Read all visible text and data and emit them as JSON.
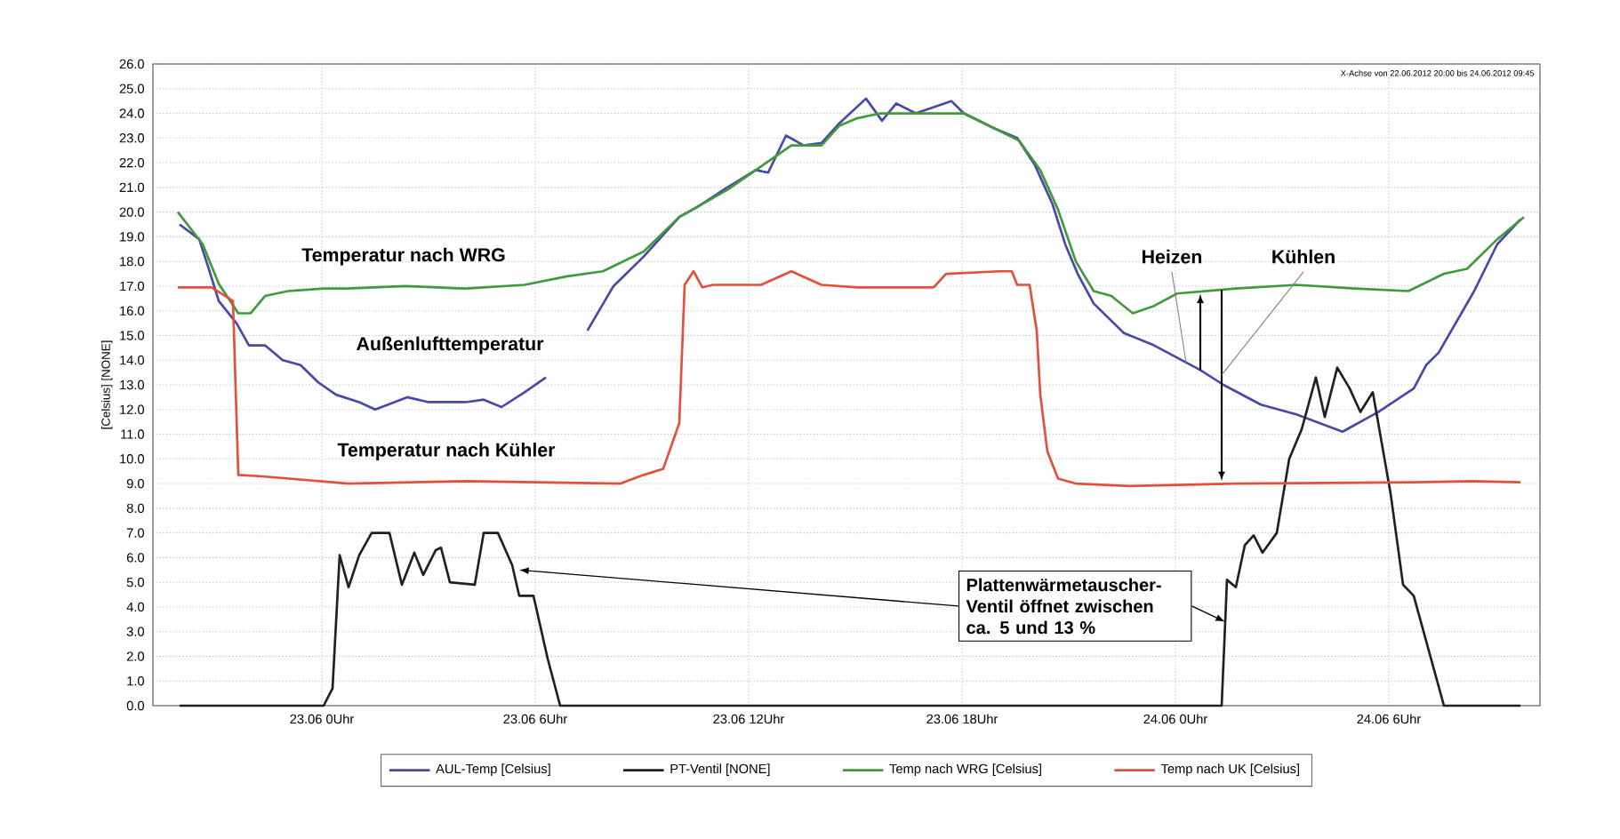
{
  "chart_data": {
    "type": "line",
    "ylabel": "[Celsius] [NONE]",
    "xlim": [
      "2012-06-22T19:15",
      "2012-06-24T10:15"
    ],
    "ylim": [
      0,
      26
    ],
    "xticks": [
      {
        "value": "2012-06-23T00:00",
        "label": "23.06 0Uhr"
      },
      {
        "value": "2012-06-23T06:00",
        "label": "23.06 6Uhr"
      },
      {
        "value": "2012-06-23T12:00",
        "label": "23.06 12Uhr"
      },
      {
        "value": "2012-06-23T18:00",
        "label": "23.06 18Uhr"
      },
      {
        "value": "2012-06-24T00:00",
        "label": "24.06 0Uhr"
      },
      {
        "value": "2012-06-24T06:00",
        "label": "24.06 6Uhr"
      }
    ],
    "yticks": [
      {
        "value": 0,
        "label": "0.0"
      },
      {
        "value": 1,
        "label": "1.0"
      },
      {
        "value": 2,
        "label": "2.0"
      },
      {
        "value": 3,
        "label": "3.0"
      },
      {
        "value": 4,
        "label": "4.0"
      },
      {
        "value": 5,
        "label": "5.0"
      },
      {
        "value": 6,
        "label": "6.0"
      },
      {
        "value": 7,
        "label": "7.0"
      },
      {
        "value": 8,
        "label": "8.0"
      },
      {
        "value": 9,
        "label": "9.0"
      },
      {
        "value": 10,
        "label": "10.0"
      },
      {
        "value": 11,
        "label": "11.0"
      },
      {
        "value": 12,
        "label": "12.0"
      },
      {
        "value": 13,
        "label": "13.0"
      },
      {
        "value": 14,
        "label": "14.0"
      },
      {
        "value": 15,
        "label": "15.0"
      },
      {
        "value": 16,
        "label": "16.0"
      },
      {
        "value": 17,
        "label": "17.0"
      },
      {
        "value": 18,
        "label": "18.0"
      },
      {
        "value": 19,
        "label": "19.0"
      },
      {
        "value": 20,
        "label": "20.0"
      },
      {
        "value": 21,
        "label": "21.0"
      },
      {
        "value": 22,
        "label": "22.0"
      },
      {
        "value": 23,
        "label": "23.0"
      },
      {
        "value": 24,
        "label": "24.0"
      },
      {
        "value": 25,
        "label": "25.0"
      },
      {
        "value": 26,
        "label": "26.0"
      }
    ],
    "grid": true,
    "legend": "bottom",
    "marker": "none",
    "line_style": "solid",
    "series": [
      {
        "name": "AUL-Temp [Celsius]",
        "color": "#4848a8",
        "x": [
          "2012-06-22T20:00",
          "2012-06-22T20:33",
          "2012-06-22T20:48",
          "2012-06-22T21:06",
          "2012-06-22T21:36",
          "2012-06-22T21:57",
          "2012-06-22T22:24",
          "2012-06-22T22:54",
          "2012-06-22T23:24",
          "2012-06-22T23:54",
          "2012-06-23T00:24",
          "2012-06-23T01:03",
          "2012-06-23T01:30",
          "2012-06-23T02:24",
          "2012-06-23T03:00",
          "2012-06-23T04:03",
          "2012-06-23T04:33",
          "2012-06-23T05:03",
          "2012-06-23T05:42",
          "2012-06-23T06:18",
          "2012-06-23T06:54",
          "2012-06-23T07:28",
          "2012-06-23T08:12",
          "2012-06-23T09:03",
          "2012-06-23T10:03",
          "2012-06-23T10:33",
          "2012-06-23T11:24",
          "2012-06-23T12:12",
          "2012-06-23T12:33",
          "2012-06-23T13:03",
          "2012-06-23T13:33",
          "2012-06-23T14:03",
          "2012-06-23T14:33",
          "2012-06-23T15:18",
          "2012-06-23T15:45",
          "2012-06-23T16:09",
          "2012-06-23T16:42",
          "2012-06-23T17:42",
          "2012-06-23T18:03",
          "2012-06-23T18:54",
          "2012-06-23T19:33",
          "2012-06-23T20:03",
          "2012-06-23T20:33",
          "2012-06-23T20:54",
          "2012-06-23T21:15",
          "2012-06-23T21:42",
          "2012-06-23T22:33",
          "2012-06-23T23:24",
          "2012-06-24T00:42",
          "2012-06-24T01:21",
          "2012-06-24T02:24",
          "2012-06-24T03:24",
          "2012-06-24T04:42",
          "2012-06-24T05:42",
          "2012-06-24T06:42",
          "2012-06-24T07:03",
          "2012-06-24T07:24",
          "2012-06-24T08:24",
          "2012-06-24T09:03",
          "2012-06-24T09:42"
        ],
        "values": [
          19.5,
          18.9,
          17.8,
          16.4,
          15.5,
          14.6,
          14.6,
          14.0,
          13.8,
          13.1,
          12.6,
          12.3,
          12.0,
          12.5,
          12.3,
          12.3,
          12.4,
          12.1,
          12.7,
          13.3,
          null,
          15.2,
          17.0,
          18.2,
          19.8,
          20.2,
          21.0,
          21.7,
          21.6,
          23.1,
          22.7,
          22.8,
          23.6,
          24.6,
          23.7,
          24.4,
          24.0,
          24.5,
          24.0,
          23.4,
          23.0,
          21.9,
          20.3,
          18.7,
          17.5,
          16.3,
          15.1,
          14.6,
          13.6,
          13.0,
          12.2,
          11.8,
          11.1,
          11.9,
          12.85,
          13.8,
          14.3,
          16.8,
          18.7,
          19.7
        ]
      },
      {
        "name": "PT-Ventil [NONE]",
        "color": "#202020",
        "x": [
          "2012-06-22T20:00",
          "2012-06-23T00:03",
          "2012-06-23T00:18",
          "2012-06-23T00:30",
          "2012-06-23T00:45",
          "2012-06-23T01:03",
          "2012-06-23T01:24",
          "2012-06-23T01:54",
          "2012-06-23T02:15",
          "2012-06-23T02:36",
          "2012-06-23T02:51",
          "2012-06-23T03:12",
          "2012-06-23T03:21",
          "2012-06-23T03:36",
          "2012-06-23T04:18",
          "2012-06-23T04:33",
          "2012-06-23T04:57",
          "2012-06-23T05:21",
          "2012-06-23T05:33",
          "2012-06-23T05:57",
          "2012-06-23T06:21",
          "2012-06-23T06:42",
          "2012-06-24T01:18",
          "2012-06-24T01:27",
          "2012-06-24T01:42",
          "2012-06-24T01:57",
          "2012-06-24T02:12",
          "2012-06-24T02:27",
          "2012-06-24T02:51",
          "2012-06-24T03:12",
          "2012-06-24T03:33",
          "2012-06-24T03:57",
          "2012-06-24T04:12",
          "2012-06-24T04:33",
          "2012-06-24T04:54",
          "2012-06-24T05:12",
          "2012-06-24T05:33",
          "2012-06-24T06:03",
          "2012-06-24T06:24",
          "2012-06-24T06:42",
          "2012-06-24T07:33",
          "2012-06-24T09:42"
        ],
        "values": [
          0,
          0,
          0.7,
          6.1,
          4.8,
          6.1,
          7.0,
          7.0,
          4.9,
          6.2,
          5.3,
          6.3,
          6.4,
          5.0,
          4.9,
          7.0,
          7.0,
          5.7,
          4.45,
          4.45,
          1.9,
          0,
          0,
          5.1,
          4.8,
          6.5,
          6.9,
          6.2,
          7.0,
          10.0,
          11.2,
          13.3,
          11.7,
          13.7,
          12.85,
          11.9,
          12.7,
          8.6,
          4.9,
          4.45,
          0,
          0
        ]
      },
      {
        "name": "Temp nach WRG [Celsius]",
        "color": "#3f9a3a",
        "x": [
          "2012-06-22T19:57",
          "2012-06-22T20:39",
          "2012-06-22T21:06",
          "2012-06-22T21:39",
          "2012-06-22T22:00",
          "2012-06-22T22:24",
          "2012-06-22T23:03",
          "2012-06-23T00:03",
          "2012-06-23T00:42",
          "2012-06-23T02:21",
          "2012-06-23T04:03",
          "2012-06-23T05:42",
          "2012-06-23T06:54",
          "2012-06-23T07:54",
          "2012-06-23T09:03",
          "2012-06-23T10:03",
          "2012-06-23T11:24",
          "2012-06-23T12:12",
          "2012-06-23T13:12",
          "2012-06-23T14:03",
          "2012-06-23T14:33",
          "2012-06-23T15:03",
          "2012-06-23T15:42",
          "2012-06-23T17:21",
          "2012-06-23T18:03",
          "2012-06-23T18:54",
          "2012-06-23T19:36",
          "2012-06-23T20:12",
          "2012-06-23T20:42",
          "2012-06-23T21:12",
          "2012-06-23T21:42",
          "2012-06-23T22:12",
          "2012-06-23T22:48",
          "2012-06-23T23:24",
          "2012-06-24T00:03",
          "2012-06-24T01:42",
          "2012-06-24T03:24",
          "2012-06-24T05:03",
          "2012-06-24T06:33",
          "2012-06-24T07:33",
          "2012-06-24T08:12",
          "2012-06-24T09:03",
          "2012-06-24T09:48"
        ],
        "values": [
          20.0,
          18.7,
          17.1,
          15.9,
          15.9,
          16.6,
          16.8,
          16.9,
          16.9,
          17.0,
          16.9,
          17.05,
          17.4,
          17.6,
          18.4,
          19.8,
          20.9,
          21.7,
          22.7,
          22.7,
          23.5,
          23.8,
          24.0,
          24.0,
          24.0,
          23.4,
          22.9,
          21.7,
          20.1,
          18.0,
          16.8,
          16.6,
          15.9,
          16.2,
          16.7,
          16.9,
          17.05,
          16.9,
          16.8,
          17.5,
          17.7,
          18.9,
          19.8
        ]
      },
      {
        "name": "Temp nach UK [Celsius]",
        "color": "#e0503c",
        "x": [
          "2012-06-22T19:57",
          "2012-06-22T20:54",
          "2012-06-22T21:30",
          "2012-06-22T21:39",
          "2012-06-22T22:15",
          "2012-06-23T00:45",
          "2012-06-23T04:06",
          "2012-06-23T08:24",
          "2012-06-23T09:03",
          "2012-06-23T09:36",
          "2012-06-23T10:03",
          "2012-06-23T10:12",
          "2012-06-23T10:27",
          "2012-06-23T10:42",
          "2012-06-23T11:00",
          "2012-06-23T12:21",
          "2012-06-23T13:12",
          "2012-06-23T14:03",
          "2012-06-23T15:03",
          "2012-06-23T17:12",
          "2012-06-23T17:33",
          "2012-06-23T19:03",
          "2012-06-23T19:24",
          "2012-06-23T19:33",
          "2012-06-23T19:54",
          "2012-06-23T20:06",
          "2012-06-23T20:12",
          "2012-06-23T20:24",
          "2012-06-23T20:42",
          "2012-06-23T21:12",
          "2012-06-23T22:42",
          "2012-06-24T01:42",
          "2012-06-24T06:42",
          "2012-06-24T08:21",
          "2012-06-24T09:42"
        ],
        "values": [
          16.95,
          16.95,
          16.4,
          9.35,
          9.3,
          9.0,
          9.1,
          9.0,
          9.35,
          9.6,
          11.45,
          17.05,
          17.6,
          16.95,
          17.05,
          17.05,
          17.6,
          17.05,
          16.95,
          16.95,
          17.5,
          17.6,
          17.6,
          17.05,
          17.05,
          15.2,
          12.6,
          10.3,
          9.2,
          9.0,
          8.9,
          9.0,
          9.05,
          9.1,
          9.05
        ]
      }
    ],
    "annotations": [
      "Temperatur nach WRG",
      "Außenlufttemperatur",
      "Temperatur nach Kühler",
      {
        "text": "Heizen",
        "x": "2012-06-24T00:18",
        "y": 13.9
      },
      {
        "text": "Kühlen",
        "x": "2012-06-24T01:18",
        "y": 13.4
      },
      {
        "text": "Plattenwärmetauscher-Ventil öffnet zwischen ca. 5 und 13 %",
        "x": "2012-06-23T05:33",
        "y": 5.5
      },
      "X-Achse von 22.06.2012 20:00 bis 24.06.2012 09:45"
    ]
  }
}
